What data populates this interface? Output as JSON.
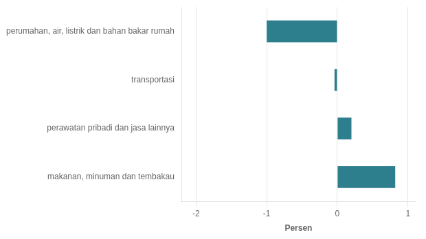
{
  "chart_data": {
    "type": "bar",
    "orientation": "horizontal",
    "categories": [
      "makanan, minuman dan tembakau",
      "perawatan pribadi dan jasa lainnya",
      "transportasi",
      "perumahan, air, listrik dan bahan bakar rumah"
    ],
    "values": [
      0.82,
      0.2,
      -0.04,
      -1.0
    ],
    "color": "#2e7f8e",
    "xlim": [
      -2.2,
      1.1
    ],
    "xticks": [
      -2,
      -1,
      0,
      1
    ],
    "xlabel": "Persen",
    "grid": true
  }
}
